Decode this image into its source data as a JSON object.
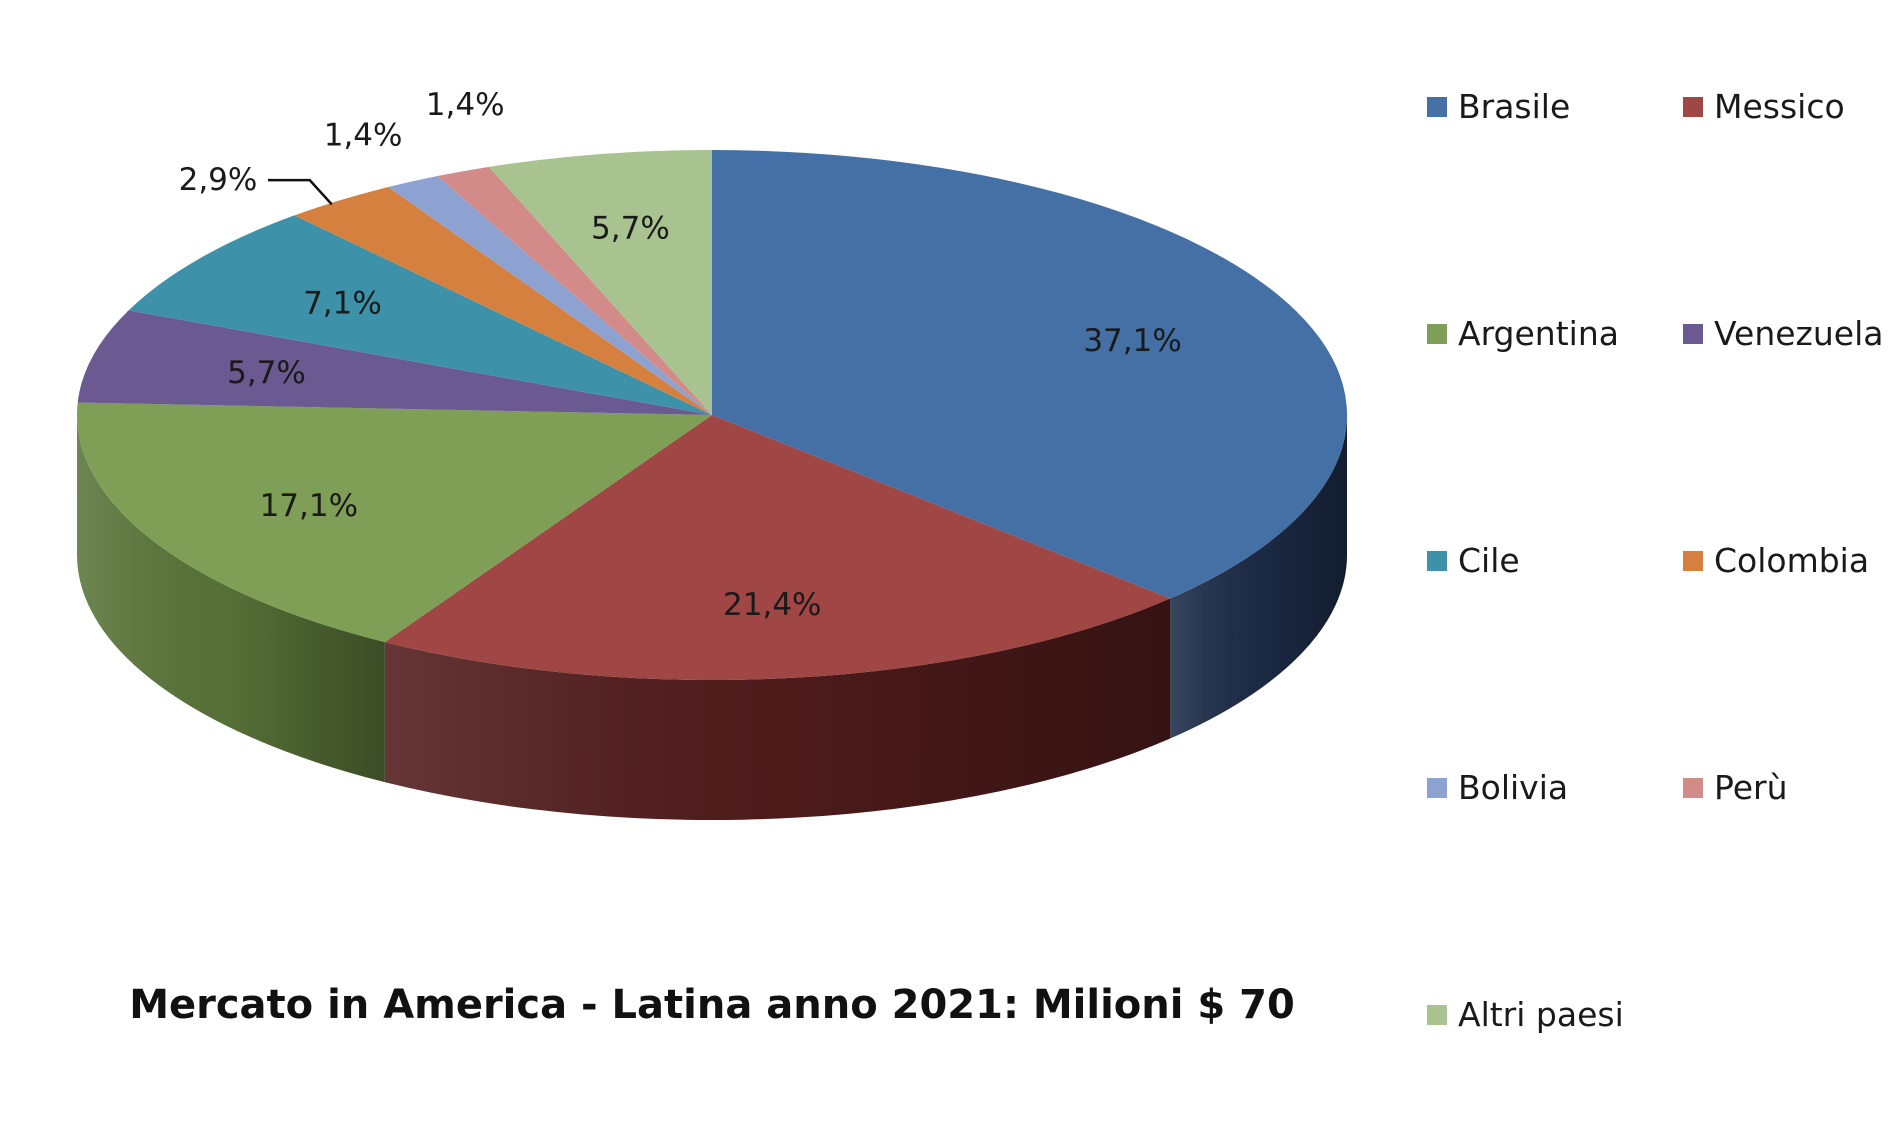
{
  "chart_data": {
    "type": "pie",
    "title": "Mercato in America - Latina anno 2021: Milioni $ 70",
    "legend_position": "right",
    "slices": [
      {
        "name": "Brasile",
        "value": 37.1,
        "label": "37,1%",
        "color": "#4470a5",
        "side": "#1d2c48"
      },
      {
        "name": "Messico",
        "value": 21.4,
        "label": "21,4%",
        "color": "#a04745",
        "side": "#521c1c"
      },
      {
        "name": "Argentina",
        "value": 17.1,
        "label": "17,1%",
        "color": "#7e9f55",
        "side": "#5a7539"
      },
      {
        "name": "Venezuela",
        "value": 5.7,
        "label": "5,7%",
        "color": "#6a5a91",
        "side": "#463a63"
      },
      {
        "name": "Cile",
        "value": 7.1,
        "label": "7,1%",
        "color": "#3d92aa",
        "side": "#276478"
      },
      {
        "name": "Colombia",
        "value": 2.9,
        "label": "2,9%",
        "color": "#d5803e",
        "side": "#8e5226"
      },
      {
        "name": "Bolivia",
        "value": 1.4,
        "label": "1,4%",
        "color": "#8da2d0",
        "side": "#5d6e94"
      },
      {
        "name": "Perù",
        "value": 1.4,
        "label": "1,4%",
        "color": "#d38b89",
        "side": "#935e5c"
      },
      {
        "name": "Altri paesi",
        "value": 5.7,
        "label": "5,7%",
        "color": "#a9c390",
        "side": "#78915f"
      }
    ]
  }
}
